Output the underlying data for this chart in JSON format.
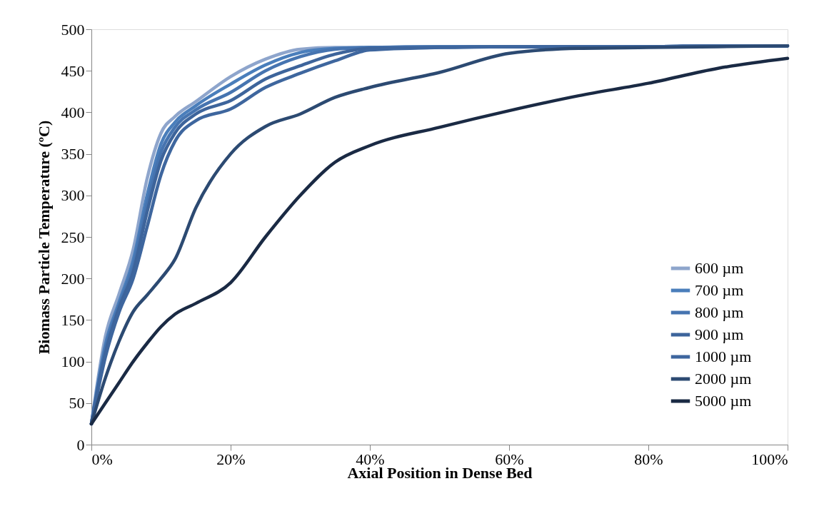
{
  "chart_data": {
    "type": "line",
    "xlabel": "Axial Position in Dense Bed",
    "ylabel": "Biomass Particle Temperature (ºC)",
    "x": [
      0,
      2,
      4,
      6,
      8,
      10,
      12,
      15,
      20,
      25,
      30,
      35,
      40,
      50,
      60,
      70,
      80,
      90,
      100
    ],
    "series": [
      {
        "name": "600 µm",
        "color": "#8ea5cc",
        "values": [
          25,
          130,
          182,
          235,
          320,
          375,
          395,
          413,
          443,
          464,
          476,
          478,
          478,
          479,
          479,
          479,
          479,
          480,
          480
        ]
      },
      {
        "name": "700 µm",
        "color": "#4a7ebb",
        "values": [
          25,
          120,
          172,
          222,
          300,
          362,
          388,
          408,
          434,
          457,
          472,
          477,
          478,
          479,
          479,
          479,
          479,
          480,
          480
        ]
      },
      {
        "name": "800 µm",
        "color": "#4674b0",
        "values": [
          25,
          115,
          168,
          215,
          290,
          352,
          382,
          403,
          424,
          450,
          467,
          476,
          478,
          479,
          479,
          479,
          479,
          480,
          480
        ]
      },
      {
        "name": "900 µm",
        "color": "#3d649b",
        "values": [
          25,
          110,
          165,
          208,
          280,
          342,
          375,
          398,
          414,
          440,
          456,
          470,
          477,
          478,
          479,
          479,
          479,
          480,
          480
        ]
      },
      {
        "name": "1000 µm",
        "color": "#3e669e",
        "values": [
          25,
          105,
          160,
          200,
          262,
          325,
          365,
          390,
          404,
          430,
          447,
          462,
          475,
          478,
          479,
          479,
          479,
          480,
          480
        ]
      },
      {
        "name": "2000 µm",
        "color": "#2c4a72",
        "values": [
          25,
          80,
          125,
          160,
          180,
          200,
          223,
          285,
          350,
          383,
          398,
          418,
          430,
          448,
          471,
          477,
          478,
          479,
          480
        ]
      },
      {
        "name": "5000 µm",
        "color": "#1a2a44",
        "values": [
          25,
          50,
          75,
          100,
          122,
          142,
          157,
          170,
          195,
          250,
          300,
          340,
          360,
          382,
          402,
          420,
          435,
          453,
          465
        ]
      }
    ],
    "xlim": [
      0,
      100
    ],
    "xticks": [
      {
        "value": 0,
        "label": "0%"
      },
      {
        "value": 20,
        "label": "20%"
      },
      {
        "value": 40,
        "label": "40%"
      },
      {
        "value": 60,
        "label": "60%"
      },
      {
        "value": 80,
        "label": "80%"
      },
      {
        "value": 100,
        "label": "100%"
      }
    ],
    "ylim": [
      0,
      500
    ],
    "yticks": [
      0,
      50,
      100,
      150,
      200,
      250,
      300,
      350,
      400,
      450,
      500
    ],
    "grid": false,
    "legend": "bottom right",
    "marker": "none",
    "line_style": "solid"
  }
}
